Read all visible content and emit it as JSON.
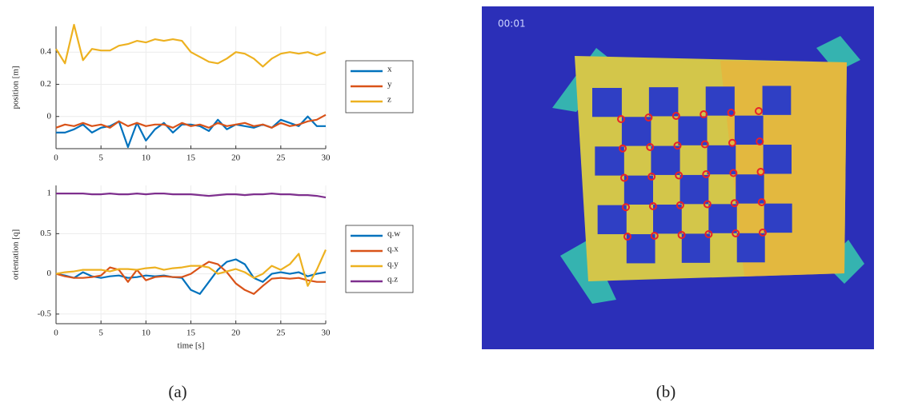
{
  "chart_data": [
    {
      "type": "line",
      "ylabel": "position [m]",
      "x": [
        0,
        1,
        2,
        3,
        4,
        5,
        6,
        7,
        8,
        9,
        10,
        11,
        12,
        13,
        14,
        15,
        16,
        17,
        18,
        19,
        20,
        21,
        22,
        23,
        24,
        25,
        26,
        27,
        28,
        29,
        30
      ],
      "xlim": [
        0,
        30
      ],
      "xticks": [
        0,
        5,
        10,
        15,
        20,
        25,
        30
      ],
      "ylim": [
        -0.2,
        0.56
      ],
      "yticks": [
        0,
        0.2,
        0.4
      ],
      "grid": true,
      "legend": "right",
      "series": [
        {
          "name": "x",
          "color": "#0072bd",
          "values": [
            -0.1,
            -0.1,
            -0.08,
            -0.05,
            -0.1,
            -0.07,
            -0.06,
            -0.03,
            -0.19,
            -0.04,
            -0.15,
            -0.08,
            -0.04,
            -0.1,
            -0.05,
            -0.05,
            -0.06,
            -0.09,
            -0.02,
            -0.08,
            -0.05,
            -0.06,
            -0.07,
            -0.05,
            -0.07,
            -0.02,
            -0.04,
            -0.06,
            0.0,
            -0.06,
            -0.06
          ]
        },
        {
          "name": "y",
          "color": "#d95319",
          "values": [
            -0.07,
            -0.05,
            -0.06,
            -0.04,
            -0.06,
            -0.05,
            -0.07,
            -0.03,
            -0.06,
            -0.04,
            -0.06,
            -0.05,
            -0.05,
            -0.07,
            -0.04,
            -0.06,
            -0.05,
            -0.07,
            -0.04,
            -0.06,
            -0.05,
            -0.04,
            -0.06,
            -0.05,
            -0.07,
            -0.04,
            -0.06,
            -0.05,
            -0.03,
            -0.02,
            0.01
          ]
        },
        {
          "name": "z",
          "color": "#edb120",
          "values": [
            0.42,
            0.33,
            0.57,
            0.35,
            0.42,
            0.41,
            0.41,
            0.44,
            0.45,
            0.47,
            0.46,
            0.48,
            0.47,
            0.48,
            0.47,
            0.4,
            0.37,
            0.34,
            0.33,
            0.36,
            0.4,
            0.39,
            0.36,
            0.31,
            0.36,
            0.39,
            0.4,
            0.39,
            0.4,
            0.38,
            0.4
          ]
        }
      ]
    },
    {
      "type": "line",
      "ylabel": "orientation [q]",
      "xlabel": "time [s]",
      "x": [
        0,
        1,
        2,
        3,
        4,
        5,
        6,
        7,
        8,
        9,
        10,
        11,
        12,
        13,
        14,
        15,
        16,
        17,
        18,
        19,
        20,
        21,
        22,
        23,
        24,
        25,
        26,
        27,
        28,
        29,
        30
      ],
      "xlim": [
        0,
        30
      ],
      "xticks": [
        0,
        5,
        10,
        15,
        20,
        25,
        30
      ],
      "ylim": [
        -0.62,
        1.1
      ],
      "yticks": [
        -0.5,
        0,
        0.5,
        1
      ],
      "grid": true,
      "legend": "right",
      "series": [
        {
          "name": "q.w",
          "color": "#0072bd",
          "values": [
            0,
            -0.02,
            -0.05,
            0.02,
            -0.03,
            -0.05,
            -0.03,
            -0.02,
            -0.05,
            -0.04,
            -0.02,
            -0.03,
            -0.02,
            -0.04,
            -0.05,
            -0.2,
            -0.25,
            -0.1,
            0.05,
            0.15,
            0.18,
            0.12,
            -0.05,
            -0.1,
            0,
            0.02,
            0,
            0.02,
            -0.03,
            0,
            0.02
          ]
        },
        {
          "name": "q.x",
          "color": "#d95319",
          "values": [
            0,
            -0.03,
            -0.05,
            -0.05,
            -0.04,
            -0.02,
            0.08,
            0.05,
            -0.1,
            0.05,
            -0.08,
            -0.04,
            -0.03,
            -0.04,
            -0.04,
            0,
            0.08,
            0.15,
            0.12,
            0.02,
            -0.12,
            -0.2,
            -0.25,
            -0.15,
            -0.06,
            -0.05,
            -0.06,
            -0.05,
            -0.08,
            -0.1,
            -0.1
          ]
        },
        {
          "name": "q.y",
          "color": "#edb120",
          "values": [
            0,
            0.02,
            0.03,
            0.05,
            0.05,
            0.05,
            0.03,
            0.06,
            0.06,
            0.05,
            0.07,
            0.08,
            0.05,
            0.07,
            0.08,
            0.1,
            0.1,
            0.08,
            0,
            0.03,
            0.06,
            0.02,
            -0.05,
            0,
            0.1,
            0.05,
            0.12,
            0.25,
            -0.15,
            0.05,
            0.3
          ]
        },
        {
          "name": "q.z",
          "color": "#7e2f8e",
          "values": [
            1,
            1,
            1,
            1,
            0.99,
            0.99,
            1,
            0.99,
            0.99,
            1,
            0.99,
            1,
            1,
            0.99,
            0.99,
            0.99,
            0.98,
            0.97,
            0.98,
            0.99,
            0.99,
            0.98,
            0.99,
            0.99,
            1,
            0.99,
            0.99,
            0.98,
            0.98,
            0.97,
            0.95
          ]
        }
      ]
    }
  ],
  "image": {
    "timestamp": "00:01"
  },
  "captions": [
    "(a)",
    "(b)"
  ]
}
